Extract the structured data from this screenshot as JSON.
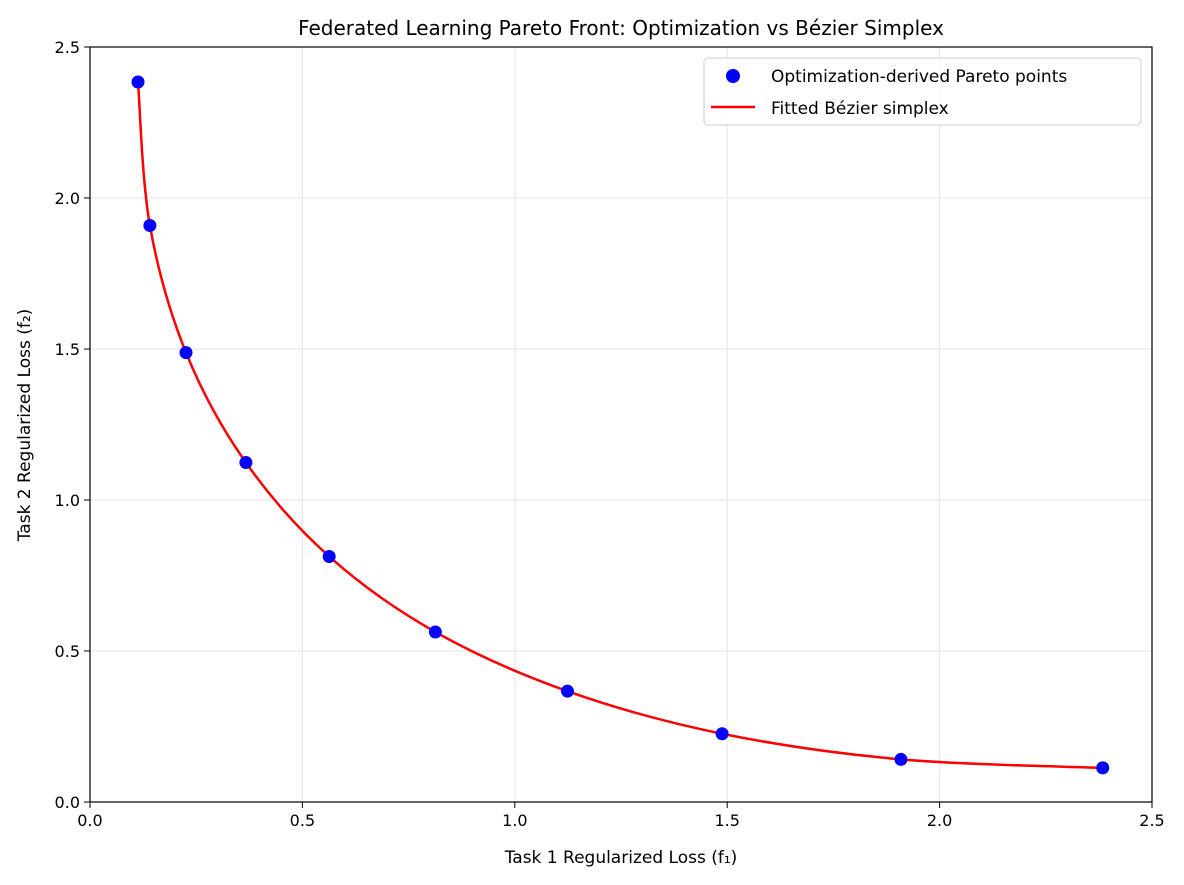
{
  "chart_data": {
    "type": "scatter",
    "title": "Federated Learning Pareto Front: Optimization vs Bézier Simplex",
    "xlabel": "Task 1 Regularized Loss (f₁)",
    "ylabel": "Task 2 Regularized Loss (f₂)",
    "xlim": [
      0,
      2.5
    ],
    "ylim": [
      0,
      2.5
    ],
    "xticks": [
      "0.0",
      "0.5",
      "1.0",
      "1.5",
      "2.0",
      "2.5"
    ],
    "yticks": [
      "0.0",
      "0.5",
      "1.0",
      "1.5",
      "2.0",
      "2.5"
    ],
    "grid": true,
    "legend_position": "top-right",
    "series": [
      {
        "name": "Optimization-derived Pareto points",
        "kind": "scatter",
        "color": "#0000ff",
        "x": [
          0.113,
          0.141,
          0.226,
          0.367,
          0.563,
          0.813,
          1.124,
          1.488,
          1.909,
          2.384
        ],
        "y": [
          2.384,
          1.909,
          1.488,
          1.124,
          0.813,
          0.563,
          0.367,
          0.226,
          0.141,
          0.113
        ]
      },
      {
        "name": "Fitted Bézier simplex",
        "kind": "line",
        "color": "#ff0000",
        "x": [
          0.113,
          0.141,
          0.226,
          0.367,
          0.563,
          0.813,
          1.124,
          1.488,
          1.909,
          2.384
        ],
        "y": [
          2.384,
          1.909,
          1.488,
          1.124,
          0.813,
          0.563,
          0.367,
          0.226,
          0.141,
          0.113
        ]
      }
    ]
  }
}
